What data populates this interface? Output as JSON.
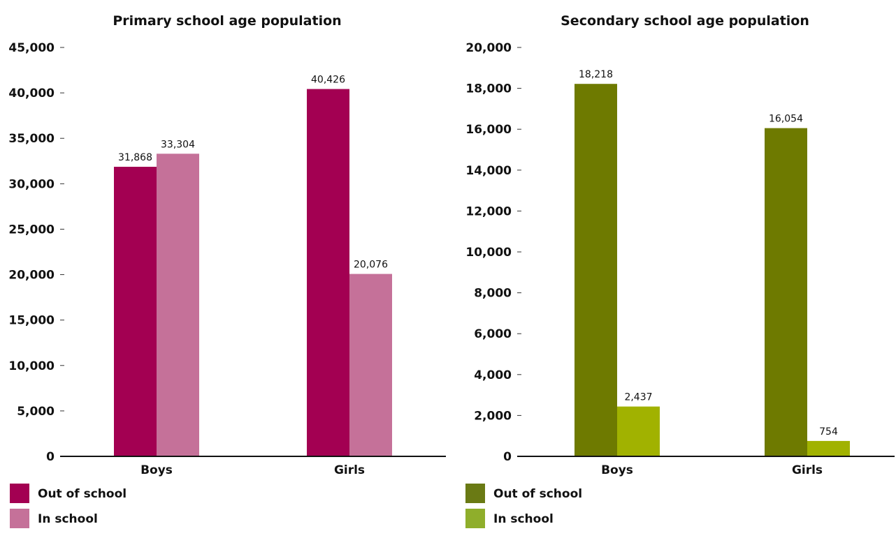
{
  "chart_data": [
    {
      "type": "bar",
      "title": "Primary school age population",
      "xlabel": "",
      "ylabel": "",
      "categories": [
        "Boys",
        "Girls"
      ],
      "ylim": [
        0,
        45000
      ],
      "yticks": [
        0,
        5000,
        10000,
        15000,
        20000,
        25000,
        30000,
        35000,
        40000,
        45000
      ],
      "ytick_labels": [
        "0",
        "5,000",
        "10,000",
        "15,000",
        "20,000",
        "25,000",
        "30,000",
        "35,000",
        "40,000",
        "45,000"
      ],
      "series": [
        {
          "name": "Out of school",
          "values": [
            31868,
            40426
          ],
          "value_labels": [
            "31,868",
            "40,426"
          ],
          "color": "#a30052"
        },
        {
          "name": "In school",
          "values": [
            33304,
            20076
          ],
          "value_labels": [
            "33,304",
            "20,076"
          ],
          "color": "#c57199"
        }
      ],
      "grid": false,
      "legend_position": "bottom-left"
    },
    {
      "type": "bar",
      "title": "Secondary school age population",
      "xlabel": "",
      "ylabel": "",
      "categories": [
        "Boys",
        "Girls"
      ],
      "ylim": [
        0,
        20000
      ],
      "yticks": [
        0,
        2000,
        4000,
        6000,
        8000,
        10000,
        12000,
        14000,
        16000,
        18000,
        20000
      ],
      "ytick_labels": [
        "0",
        "2,000",
        "4,000",
        "6,000",
        "8,000",
        "10,000",
        "12,000",
        "14,000",
        "16,000",
        "18,000",
        "20,000"
      ],
      "series": [
        {
          "name": "Out of school",
          "values": [
            18218,
            16054
          ],
          "value_labels": [
            "18,218",
            "16,054"
          ],
          "color": "#6e7a00"
        },
        {
          "name": "In school",
          "values": [
            2437,
            754
          ],
          "value_labels": [
            "2,437",
            "754"
          ],
          "color": "#a1b200"
        }
      ],
      "legend_colors": [
        "#6a7a14",
        "#8fae2b"
      ],
      "grid": false,
      "legend_position": "bottom-left"
    }
  ]
}
